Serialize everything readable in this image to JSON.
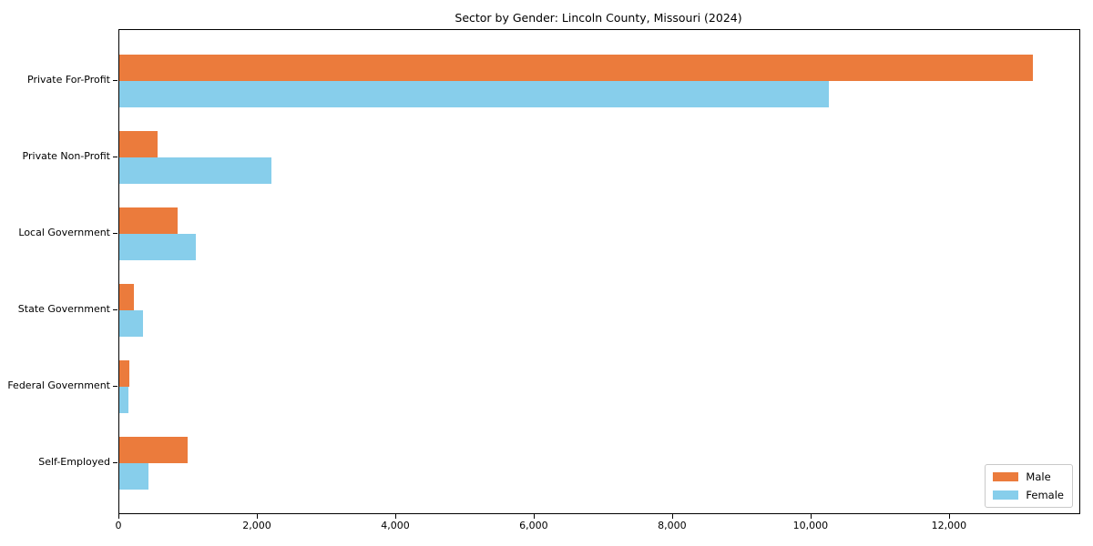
{
  "chart_data": {
    "type": "bar",
    "orientation": "horizontal",
    "title": "Sector by Gender: Lincoln County, Missouri (2024)",
    "categories": [
      "Private For-Profit",
      "Private Non-Profit",
      "Local Government",
      "State Government",
      "Federal Government",
      "Self-Employed"
    ],
    "series": [
      {
        "name": "Male",
        "color": "#EB7B3C",
        "values": [
          13200,
          550,
          840,
          210,
          150,
          980
        ]
      },
      {
        "name": "Female",
        "color": "#87CEEB",
        "values": [
          10250,
          2200,
          1100,
          340,
          130,
          420
        ]
      }
    ],
    "xlabel": "",
    "ylabel": "",
    "xlim": [
      0,
      13870
    ],
    "xticks": {
      "values": [
        0,
        2000,
        4000,
        6000,
        8000,
        10000,
        12000
      ],
      "labels": [
        "0",
        "2,000",
        "4,000",
        "6,000",
        "8,000",
        "10,000",
        "12,000"
      ]
    },
    "legend": {
      "position": "lower right",
      "entries": [
        "Male",
        "Female"
      ]
    },
    "grid": false,
    "background": "#ffffff",
    "spine_color": "#000000"
  }
}
